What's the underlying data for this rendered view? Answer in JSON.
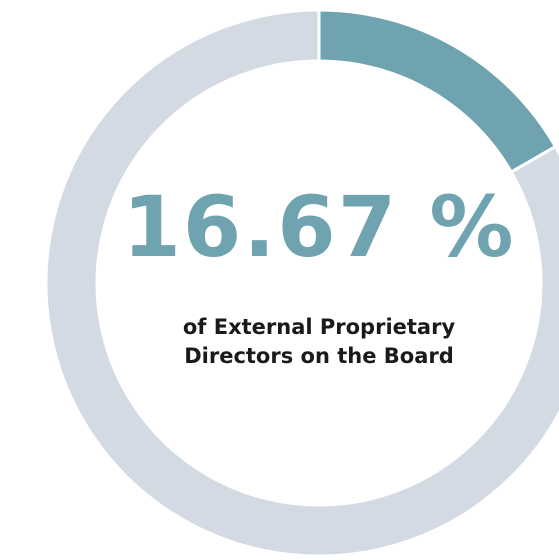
{
  "chart_data": {
    "type": "donut",
    "values": [
      16.67,
      83.33
    ],
    "colors": [
      "#6fa3b0",
      "#d3dae3"
    ],
    "value_labels": [
      "16.67 %",
      null
    ],
    "subtitle_lines": [
      "of External Proprietary",
      "Directors on the Board"
    ]
  }
}
